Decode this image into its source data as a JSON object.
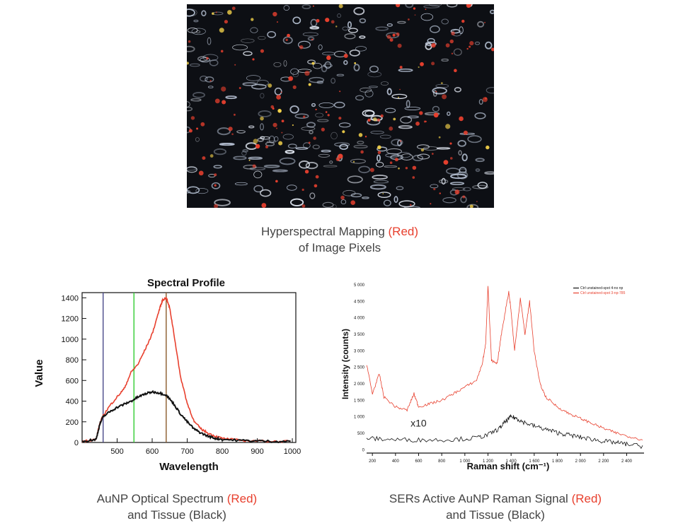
{
  "micrograph": {
    "caption_line1": "Hyperspectral Mapping ",
    "caption_red": "(Red)",
    "caption_line2": "of Image Pixels"
  },
  "colors": {
    "red": "#e8402e",
    "black": "#111111",
    "marker_blue": "#4a4a8a",
    "marker_green": "#33cc33",
    "marker_brown": "#8b5a2b"
  },
  "left_caption": {
    "line1": "AuNP Optical Spectrum ",
    "red": "(Red)",
    "line2": "and Tissue (Black)"
  },
  "right_caption": {
    "line1": "SERs Active AuNP Raman Signal ",
    "red": "(Red)",
    "line2": "and Tissue (Black)"
  },
  "chart_data": [
    {
      "type": "line",
      "title": "Spectral Profile",
      "xlabel": "Wavelength",
      "ylabel": "Value",
      "xlim": [
        400,
        1010
      ],
      "ylim": [
        0,
        1450
      ],
      "xticks": [
        500,
        600,
        700,
        800,
        900,
        1000
      ],
      "yticks": [
        0,
        200,
        400,
        600,
        800,
        1000,
        1200,
        1400
      ],
      "vertical_markers": [
        {
          "x": 460,
          "color": "#4a4a8a"
        },
        {
          "x": 548,
          "color": "#33cc33"
        },
        {
          "x": 640,
          "color": "#8b5a2b"
        }
      ],
      "series": [
        {
          "color": "#e8402e",
          "x": [
            400,
            420,
            440,
            450,
            460,
            480,
            500,
            520,
            540,
            560,
            580,
            600,
            620,
            630,
            640,
            650,
            660,
            680,
            700,
            720,
            740,
            760,
            780,
            800,
            850,
            900,
            950,
            1000
          ],
          "values": [
            10,
            20,
            30,
            180,
            260,
            360,
            440,
            520,
            680,
            760,
            900,
            1050,
            1280,
            1380,
            1400,
            1300,
            1100,
            650,
            380,
            200,
            130,
            90,
            60,
            40,
            20,
            15,
            10,
            10
          ]
        },
        {
          "color": "#111111",
          "x": [
            400,
            420,
            440,
            450,
            460,
            480,
            500,
            520,
            540,
            560,
            580,
            600,
            620,
            640,
            660,
            680,
            700,
            720,
            740,
            760,
            780,
            800,
            850,
            900,
            950,
            1000
          ],
          "values": [
            10,
            20,
            30,
            170,
            250,
            300,
            340,
            370,
            400,
            440,
            470,
            490,
            480,
            460,
            380,
            280,
            200,
            130,
            90,
            60,
            40,
            30,
            20,
            15,
            10,
            10
          ]
        }
      ]
    },
    {
      "type": "line",
      "xlabel": "Raman shift (cm⁻¹)",
      "ylabel": "Intensity (counts)",
      "xlim": [
        150,
        2550
      ],
      "ylim": [
        -100,
        5000
      ],
      "xticks": [
        "200",
        "400",
        "600",
        "800",
        "1 000",
        "1 200",
        "1 400",
        "1 600",
        "1 800",
        "2 000",
        "2 200",
        "2 400"
      ],
      "xtick_values": [
        200,
        400,
        600,
        800,
        1000,
        1200,
        1400,
        1600,
        1800,
        2000,
        2200,
        2400
      ],
      "yticks": [
        "0",
        "500",
        "1 000",
        "1 500",
        "2 000",
        "2 500",
        "3 000",
        "3 500",
        "4 000",
        "4 500",
        "5 000"
      ],
      "ytick_values": [
        0,
        500,
        1000,
        1500,
        2000,
        2500,
        3000,
        3500,
        4000,
        4500,
        5000
      ],
      "legend": {
        "position": "top-right",
        "entries": [
          "Ctrl unstained-spot 4-no np",
          "Ctrl unstained-spot 3-np-785"
        ]
      },
      "annotation": "x10",
      "series": [
        {
          "name": "Ctrl unstained-spot 4-no np",
          "color": "#111111",
          "x": [
            150,
            300,
            500,
            700,
            900,
            1100,
            1200,
            1300,
            1350,
            1400,
            1450,
            1500,
            1600,
            1700,
            1800,
            1900,
            2000,
            2100,
            2200,
            2300,
            2400,
            2550
          ],
          "values": [
            350,
            320,
            300,
            300,
            310,
            360,
            450,
            650,
            850,
            1000,
            950,
            850,
            720,
            620,
            520,
            450,
            380,
            320,
            260,
            220,
            170,
            100
          ]
        },
        {
          "name": "Ctrl unstained-spot 3-np-785",
          "color": "#e8402e",
          "x": [
            150,
            200,
            260,
            300,
            400,
            500,
            560,
            600,
            700,
            800,
            900,
            1000,
            1100,
            1150,
            1180,
            1200,
            1230,
            1280,
            1320,
            1380,
            1400,
            1430,
            1480,
            1520,
            1560,
            1600,
            1650,
            1700,
            1800,
            1900,
            2000,
            2100,
            2200,
            2300,
            2400,
            2550
          ],
          "values": [
            2600,
            1700,
            2300,
            1600,
            1300,
            1200,
            1700,
            1300,
            1400,
            1500,
            1700,
            1900,
            2100,
            2600,
            3200,
            5000,
            2700,
            2600,
            3600,
            4800,
            4200,
            3000,
            4600,
            3500,
            4500,
            3000,
            2000,
            1600,
            1300,
            1100,
            950,
            800,
            650,
            520,
            420,
            300
          ]
        }
      ]
    }
  ]
}
